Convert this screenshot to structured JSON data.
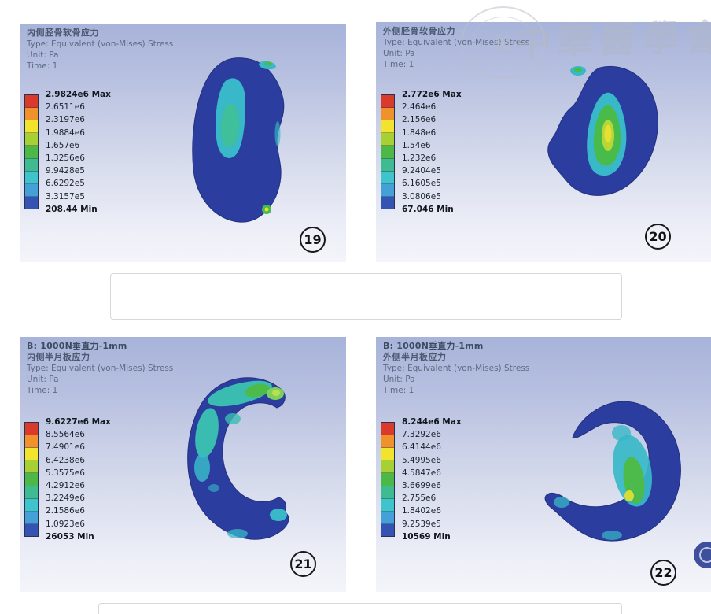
{
  "watermark": {
    "text": "中華醫學會",
    "seal_char": "醫"
  },
  "colorbar_colors": [
    "#d93a2b",
    "#f0922c",
    "#f2e32e",
    "#a7d034",
    "#4cb848",
    "#3fbb92",
    "#3fc3cc",
    "#45a0d8",
    "#3553b2"
  ],
  "model_colors": {
    "base_blue": "#2c3da0",
    "cyan": "#38b8c8",
    "teal": "#3fbf9a",
    "green": "#49bb4a",
    "yellow_green": "#b8d637",
    "yellow": "#e6e034"
  },
  "panels": [
    {
      "id": "p19",
      "project_line": "",
      "title_cn": "内侧胫骨软骨应力",
      "type_line": "Type: Equivalent (von-Mises) Stress",
      "unit_line": "Unit: Pa",
      "time_line": "Time: 1",
      "legend_values": [
        "2.9824e6 Max",
        "2.6511e6",
        "2.3197e6",
        "1.9884e6",
        "1.657e6",
        "1.3256e6",
        "9.9428e5",
        "6.6292e5",
        "3.3157e5",
        "208.44 Min"
      ],
      "figure_number": "19"
    },
    {
      "id": "p20",
      "project_line": "",
      "title_cn": "外侧胫骨软骨应力",
      "type_line": "Type: Equivalent (von-Mises) Stress",
      "unit_line": "Unit: Pa",
      "time_line": "Time: 1",
      "legend_values": [
        "2.772e6 Max",
        "2.464e6",
        "2.156e6",
        "1.848e6",
        "1.54e6",
        "1.232e6",
        "9.2404e5",
        "6.1605e5",
        "3.0806e5",
        "67.046 Min"
      ],
      "figure_number": "20"
    },
    {
      "id": "p21",
      "project_line": "B: 1000N垂直力-1mm",
      "title_cn": "内侧半月板应力",
      "type_line": "Type: Equivalent (von-Mises) Stress",
      "unit_line": "Unit: Pa",
      "time_line": "Time: 1",
      "legend_values": [
        "9.6227e6 Max",
        "8.5564e6",
        "7.4901e6",
        "6.4238e6",
        "5.3575e6",
        "4.2912e6",
        "3.2249e6",
        "2.1586e6",
        "1.0923e6",
        "26053 Min"
      ],
      "figure_number": "21"
    },
    {
      "id": "p22",
      "project_line": "B: 1000N垂直力-1mm",
      "title_cn": "外侧半月板应力",
      "type_line": "Type: Equivalent (von-Mises) Stress",
      "unit_line": "Unit: Pa",
      "time_line": "Time: 1",
      "legend_values": [
        "8.244e6 Max",
        "7.3292e6",
        "6.4144e6",
        "5.4995e6",
        "4.5847e6",
        "3.6699e6",
        "2.755e6",
        "1.8402e6",
        "9.2539e5",
        "10569 Min"
      ],
      "figure_number": "22"
    }
  ]
}
